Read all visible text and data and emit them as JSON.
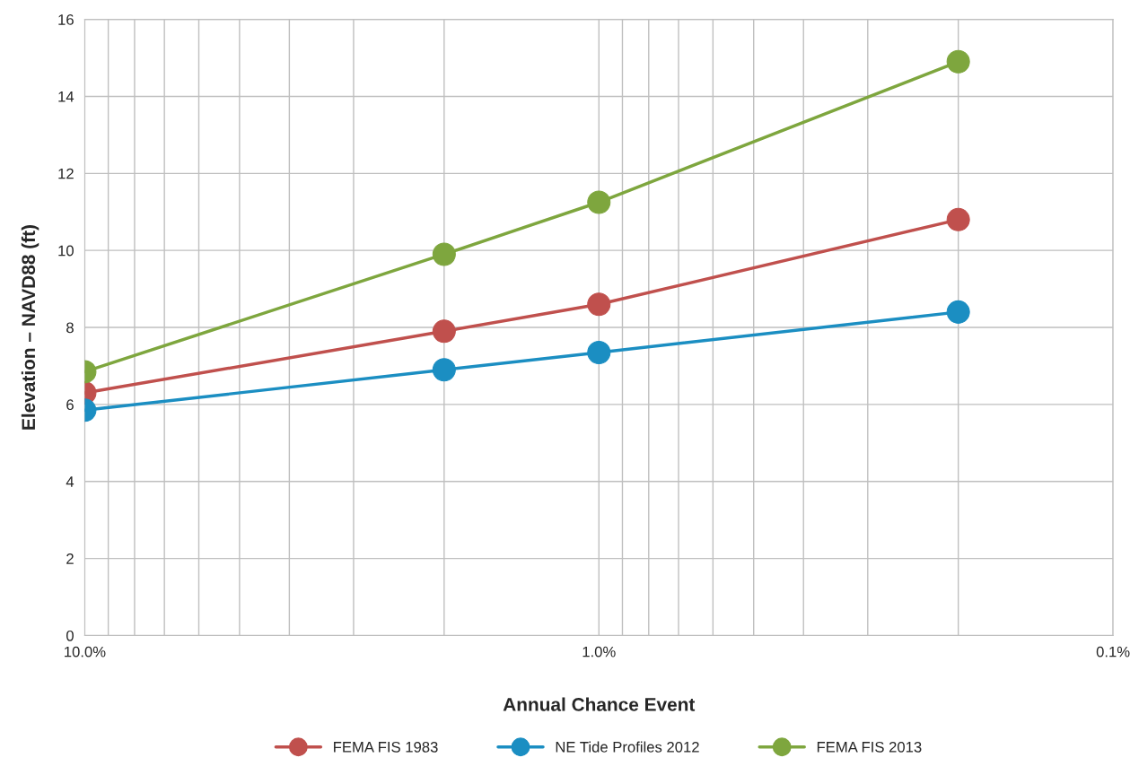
{
  "chart_data": {
    "type": "line",
    "xlabel": "Annual Chance Event",
    "ylabel": "Elevation – NAVD88 (ft)",
    "x": [
      10,
      2,
      1,
      0.2
    ],
    "series": [
      {
        "name": "FEMA FIS 1983",
        "color": "#c0504d",
        "values": [
          6.3,
          7.9,
          8.6,
          10.8
        ]
      },
      {
        "name": "NE Tide Profiles 2012",
        "color": "#1b8ec2",
        "values": [
          5.85,
          6.9,
          7.35,
          8.4
        ]
      },
      {
        "name": "FEMA FIS 2013",
        "color": "#7ea63e",
        "values": [
          6.85,
          9.9,
          11.25,
          14.9
        ]
      }
    ],
    "log": "x",
    "xlim": [
      10,
      0.1
    ],
    "xticks": [
      {
        "value": 10,
        "label": "10.0%"
      },
      {
        "value": 1,
        "label": "1.0%"
      },
      {
        "value": 0.1,
        "label": "0.1%"
      }
    ],
    "ylim": [
      0,
      16
    ],
    "yticks": [
      0,
      2,
      4,
      6,
      8,
      10,
      12,
      14,
      16
    ],
    "grid": true,
    "legend": "bottom",
    "marker": "circle",
    "line_style": "solid"
  }
}
